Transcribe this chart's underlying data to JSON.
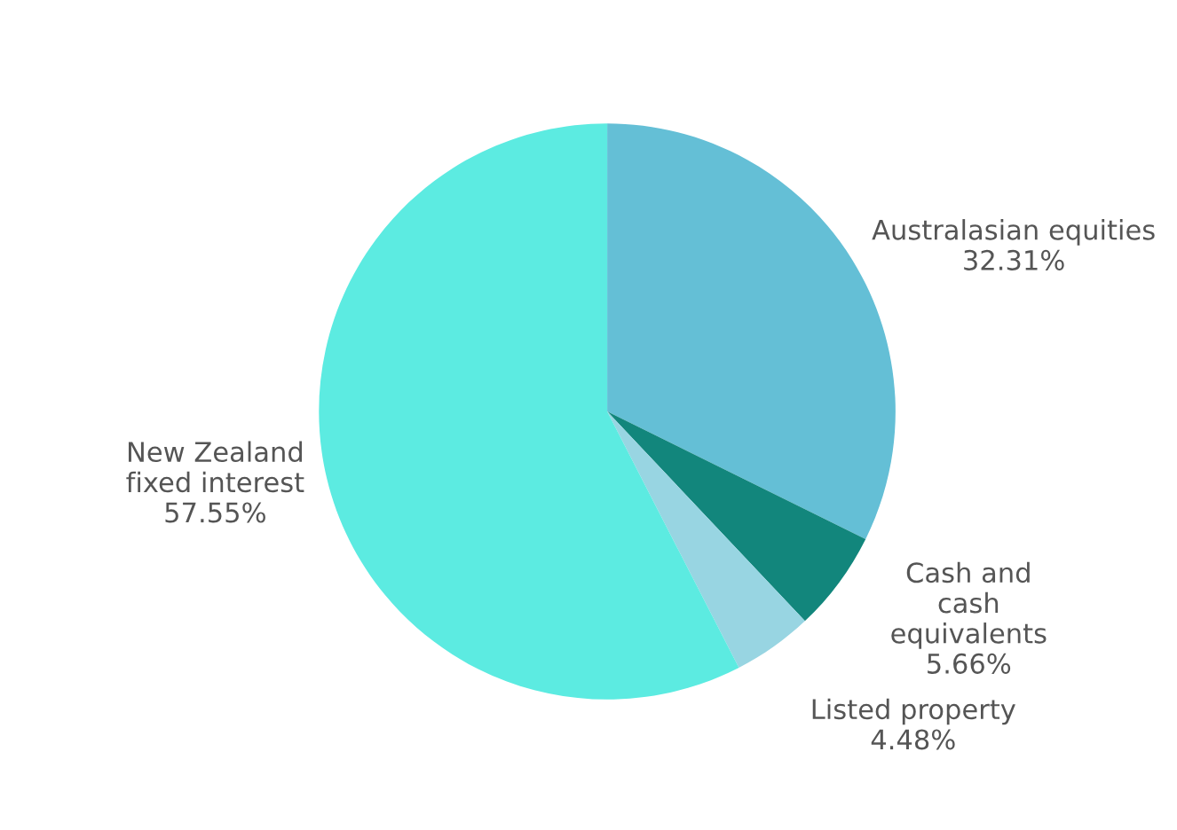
{
  "chart_data": {
    "type": "pie",
    "categories": [
      "Australasian equities",
      "Cash and\ncash\nequivalents",
      "Listed property",
      "New Zealand\nfixed interest"
    ],
    "values": [
      32.31,
      5.66,
      4.48,
      57.55
    ],
    "value_labels": [
      "32.31%",
      "5.66%",
      "4.48%",
      "57.55%"
    ],
    "colors": [
      "#64bfd6",
      "#12867c",
      "#98d5e2",
      "#5cebe1"
    ],
    "legend": false
  }
}
